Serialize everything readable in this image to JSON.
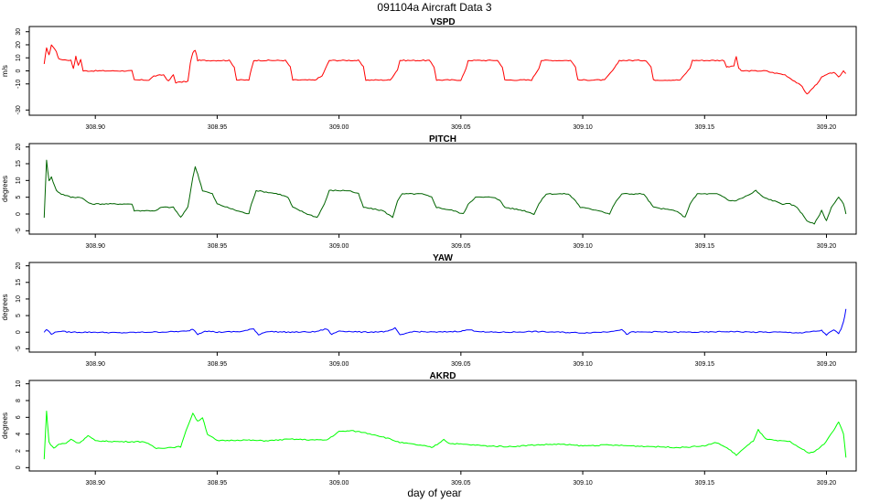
{
  "chart_data": {
    "type": "line",
    "title": "091104a   Aircraft Data 3",
    "xlabel": "day of year",
    "x_ticks": [
      "308.90",
      "308.95",
      "309.00",
      "309.05",
      "309.10",
      "309.15",
      "309.20"
    ],
    "x_tick_values": [
      308.9,
      308.95,
      309.0,
      309.05,
      309.1,
      309.15,
      309.2
    ],
    "xlim": [
      308.8729,
      309.2122
    ],
    "panels": [
      {
        "name": "VSPD",
        "ylabel": "m/s",
        "color": "#ff0000",
        "ylim": [
          -34,
          34
        ],
        "y_ticks": [
          -30,
          -10,
          0,
          10,
          20,
          30
        ],
        "y_tick_labels": [
          "-30",
          "-10",
          "0",
          "10",
          "20",
          "30"
        ],
        "series": {
          "x": [
            308.879,
            308.88,
            308.881,
            308.882,
            308.884,
            308.885,
            308.89,
            308.891,
            308.892,
            308.893,
            308.894,
            308.895,
            308.897,
            308.904,
            308.915,
            308.916,
            308.922,
            308.924,
            308.928,
            308.93,
            308.932,
            308.933,
            308.938,
            308.939,
            308.94,
            308.941,
            308.942,
            308.944,
            308.955,
            308.957,
            308.958,
            308.963,
            308.964,
            308.965,
            308.967,
            308.978,
            308.98,
            308.981,
            308.987,
            308.99,
            308.993,
            308.996,
            309.008,
            309.01,
            309.011,
            309.018,
            309.021,
            309.024,
            309.025,
            309.037,
            309.039,
            309.04,
            309.047,
            309.05,
            309.052,
            309.053,
            309.065,
            309.067,
            309.068,
            309.076,
            309.079,
            309.082,
            309.083,
            309.095,
            309.097,
            309.098,
            309.106,
            309.109,
            309.113,
            309.115,
            309.126,
            309.128,
            309.129,
            309.137,
            309.14,
            309.144,
            309.145,
            309.156,
            309.158,
            309.159,
            309.16,
            309.162,
            309.163,
            309.164,
            309.165,
            309.175,
            309.177,
            309.183,
            309.187,
            309.19,
            309.192,
            309.194,
            309.196,
            309.198,
            309.2,
            309.203,
            309.205,
            309.207,
            309.208
          ],
          "y": [
            5,
            18,
            12,
            20,
            15,
            9,
            8,
            2,
            11,
            4,
            9,
            0,
            0,
            0,
            0,
            -7,
            -7,
            -4,
            -3,
            -8,
            -3,
            -9,
            -8,
            6,
            14,
            16,
            8,
            8,
            8,
            3,
            -7,
            -7,
            1,
            8,
            8,
            8,
            3,
            -7,
            -7,
            -7,
            -4,
            8,
            8,
            3,
            -7,
            -7,
            -7,
            1,
            8,
            8,
            3,
            -7,
            -7,
            -7,
            1,
            8,
            8,
            3,
            -7,
            -7,
            -7,
            2,
            8,
            8,
            3,
            -7,
            -7,
            -7,
            2,
            8,
            8,
            3,
            -7,
            -7,
            -7,
            2,
            8,
            8,
            8,
            3,
            3,
            4,
            11,
            2,
            0,
            0,
            -1,
            -3,
            -8,
            -12,
            -18,
            -14,
            -10,
            -5,
            -3,
            -1,
            -5,
            0,
            -2
          ]
        }
      },
      {
        "name": "PITCH",
        "ylabel": "degrees",
        "color": "#006400",
        "ylim": [
          -6,
          21
        ],
        "y_ticks": [
          -5,
          0,
          5,
          10,
          15,
          20
        ],
        "y_tick_labels": [
          "-5",
          "0",
          "5",
          "10",
          "15",
          "20"
        ],
        "series": {
          "x": [
            308.879,
            308.88,
            308.881,
            308.882,
            308.884,
            308.886,
            308.89,
            308.892,
            308.894,
            308.896,
            308.898,
            308.915,
            308.916,
            308.925,
            308.927,
            308.932,
            308.935,
            308.938,
            308.94,
            308.941,
            308.942,
            308.944,
            308.948,
            308.95,
            308.958,
            308.963,
            308.964,
            308.966,
            308.975,
            308.979,
            308.981,
            308.987,
            308.991,
            308.994,
            308.996,
            309.004,
            309.008,
            309.01,
            309.018,
            309.022,
            309.024,
            309.026,
            309.034,
            309.038,
            309.04,
            309.047,
            309.051,
            309.053,
            309.056,
            309.064,
            309.066,
            309.068,
            309.076,
            309.08,
            309.082,
            309.085,
            309.094,
            309.097,
            309.099,
            309.107,
            309.111,
            309.113,
            309.116,
            309.125,
            309.127,
            309.129,
            309.138,
            309.142,
            309.144,
            309.147,
            309.155,
            309.158,
            309.16,
            309.163,
            309.166,
            309.169,
            309.171,
            309.174,
            309.178,
            309.182,
            309.185,
            309.188,
            309.19,
            309.192,
            309.195,
            309.198,
            309.2,
            309.202,
            309.205,
            309.207,
            309.208
          ],
          "y": [
            -1,
            16,
            10,
            11,
            7,
            6,
            5,
            5,
            5,
            4,
            3,
            3,
            1,
            1,
            2,
            2,
            -1,
            2,
            11,
            14,
            12,
            7,
            6,
            3,
            1,
            0,
            3,
            7,
            6,
            5,
            2,
            0,
            -1,
            3,
            7,
            7,
            6,
            2,
            1,
            -1,
            4,
            6,
            6,
            5,
            2,
            1,
            0,
            3,
            5,
            5,
            4,
            2,
            1,
            0,
            3,
            6,
            6,
            4,
            2,
            1,
            0,
            3,
            6,
            6,
            4,
            2,
            1,
            -1,
            3,
            6,
            6,
            5,
            4,
            4,
            5,
            6,
            7,
            5,
            4,
            3,
            3,
            2,
            0,
            -2,
            -3,
            1,
            -2,
            2,
            5,
            3,
            0
          ]
        }
      },
      {
        "name": "YAW",
        "ylabel": "degrees",
        "color": "#0000ff",
        "ylim": [
          -6,
          21
        ],
        "y_ticks": [
          -5,
          0,
          5,
          10,
          15,
          20
        ],
        "y_tick_labels": [
          "-5",
          "0",
          "5",
          "10",
          "15",
          "20"
        ],
        "series": {
          "x": [
            308.879,
            308.88,
            308.882,
            308.885,
            308.89,
            308.9,
            308.91,
            308.92,
            308.93,
            308.938,
            308.94,
            308.942,
            308.945,
            308.95,
            308.96,
            308.965,
            308.967,
            308.97,
            308.98,
            308.99,
            308.995,
            308.997,
            309.0,
            309.01,
            309.02,
            309.023,
            309.025,
            309.03,
            309.04,
            309.05,
            309.053,
            309.06,
            309.07,
            309.08,
            309.09,
            309.1,
            309.11,
            309.116,
            309.118,
            309.12,
            309.13,
            309.14,
            309.15,
            309.16,
            309.17,
            309.18,
            309.19,
            309.198,
            309.2,
            309.203,
            309.205,
            309.206,
            309.207,
            309.208
          ],
          "y": [
            0,
            0.8,
            -0.5,
            0.3,
            0,
            0,
            -0.2,
            0,
            0.1,
            0.3,
            1,
            -0.6,
            0.4,
            0,
            0.2,
            1,
            -0.8,
            0.2,
            0,
            0.1,
            1,
            -0.7,
            0.4,
            0,
            0.2,
            1.2,
            -0.9,
            0.2,
            0,
            0.3,
            0.7,
            0,
            0,
            0.2,
            0,
            -0.2,
            0.1,
            0.8,
            -0.6,
            0,
            0.1,
            0,
            0,
            0.2,
            0,
            0,
            -0.2,
            0.5,
            -0.8,
            0.7,
            -0.5,
            1,
            3,
            7
          ]
        }
      },
      {
        "name": "AKRD",
        "ylabel": "degrees",
        "color": "#00ff00",
        "ylim": [
          -0.4,
          10.4
        ],
        "y_ticks": [
          0,
          2,
          4,
          6,
          8,
          10
        ],
        "y_tick_labels": [
          "0",
          "2",
          "4",
          "6",
          "8",
          "10"
        ],
        "series": {
          "x": [
            308.879,
            308.88,
            308.881,
            308.883,
            308.885,
            308.888,
            308.89,
            308.893,
            308.895,
            308.897,
            308.9,
            308.91,
            308.92,
            308.925,
            308.93,
            308.935,
            308.938,
            308.94,
            308.942,
            308.944,
            308.946,
            308.95,
            308.96,
            308.97,
            308.98,
            308.99,
            308.995,
            309.0,
            309.005,
            309.01,
            309.015,
            309.02,
            309.025,
            309.03,
            309.035,
            309.038,
            309.041,
            309.043,
            309.045,
            309.05,
            309.06,
            309.07,
            309.08,
            309.09,
            309.1,
            309.11,
            309.12,
            309.13,
            309.14,
            309.15,
            309.155,
            309.16,
            309.163,
            309.165,
            309.17,
            309.172,
            309.175,
            309.18,
            309.185,
            309.19,
            309.193,
            309.196,
            309.199,
            309.201,
            309.203,
            309.205,
            309.207,
            309.208
          ],
          "y": [
            1,
            6.8,
            3,
            2.3,
            2.8,
            2.9,
            3.4,
            2.9,
            3.3,
            3.8,
            3.2,
            3.1,
            3.1,
            2.3,
            2.4,
            2.5,
            5,
            6.5,
            5.5,
            6,
            4,
            3.2,
            3.3,
            3.2,
            3.4,
            3.3,
            3.3,
            4.3,
            4.4,
            4.2,
            3.9,
            3.5,
            3,
            2.8,
            2.6,
            2.4,
            2.9,
            3.4,
            2.9,
            2.8,
            2.6,
            2.5,
            2.7,
            2.8,
            2.6,
            2.7,
            2.6,
            2.5,
            2.4,
            2.6,
            3,
            2.2,
            1.5,
            2,
            3.2,
            4.5,
            3.4,
            3.2,
            3.1,
            2.2,
            1.7,
            2.1,
            2.8,
            3.6,
            4.5,
            5.5,
            4,
            1.2
          ]
        }
      }
    ]
  }
}
